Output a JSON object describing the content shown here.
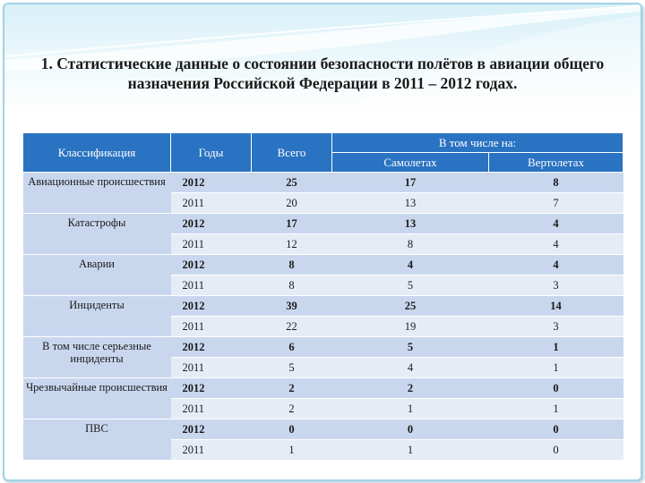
{
  "title": "1. Статистические данные о состоянии безопасности полётов в авиации общего назначения Российской Федерации в 2011 – 2012 годах.",
  "colors": {
    "header": "#2a73c2",
    "row_dark": "#c9d7ee",
    "row_light": "#e6ecf6",
    "accent": "#9fd3e6"
  },
  "table": {
    "headers": {
      "classification": "Классификация",
      "years": "Годы",
      "total": "Всего",
      "including": "В том числе на:",
      "planes": "Самолетах",
      "helicopters": "Вертолетах"
    },
    "groups": [
      {
        "name": "Авиационные происшествия",
        "rows": [
          {
            "year": "2012",
            "total": "25",
            "planes": "17",
            "helicopters": "8"
          },
          {
            "year": "2011",
            "total": "20",
            "planes": "13",
            "helicopters": "7"
          }
        ]
      },
      {
        "name": "Катастрофы",
        "rows": [
          {
            "year": "2012",
            "total": "17",
            "planes": "13",
            "helicopters": "4"
          },
          {
            "year": "2011",
            "total": "12",
            "planes": "8",
            "helicopters": "4"
          }
        ]
      },
      {
        "name": "Аварии",
        "rows": [
          {
            "year": "2012",
            "total": "8",
            "planes": "4",
            "helicopters": "4"
          },
          {
            "year": "2011",
            "total": "8",
            "planes": "5",
            "helicopters": "3"
          }
        ]
      },
      {
        "name": "Инциденты",
        "rows": [
          {
            "year": "2012",
            "total": "39",
            "planes": "25",
            "helicopters": "14"
          },
          {
            "year": "2011",
            "total": "22",
            "planes": "19",
            "helicopters": "3"
          }
        ]
      },
      {
        "name": "В том числе серьезные инциденты",
        "rows": [
          {
            "year": "2012",
            "total": "6",
            "planes": "5",
            "helicopters": "1"
          },
          {
            "year": "2011",
            "total": "5",
            "planes": "4",
            "helicopters": "1"
          }
        ]
      },
      {
        "name": "Чрезвычайные происшествия",
        "rows": [
          {
            "year": "2012",
            "total": "2",
            "planes": "2",
            "helicopters": "0"
          },
          {
            "year": "2011",
            "total": "2",
            "planes": "1",
            "helicopters": "1"
          }
        ]
      },
      {
        "name": "ПВС",
        "rows": [
          {
            "year": "2012",
            "total": "0",
            "planes": "0",
            "helicopters": "0"
          },
          {
            "year": "2011",
            "total": "1",
            "planes": "1",
            "helicopters": "0"
          }
        ]
      }
    ]
  }
}
